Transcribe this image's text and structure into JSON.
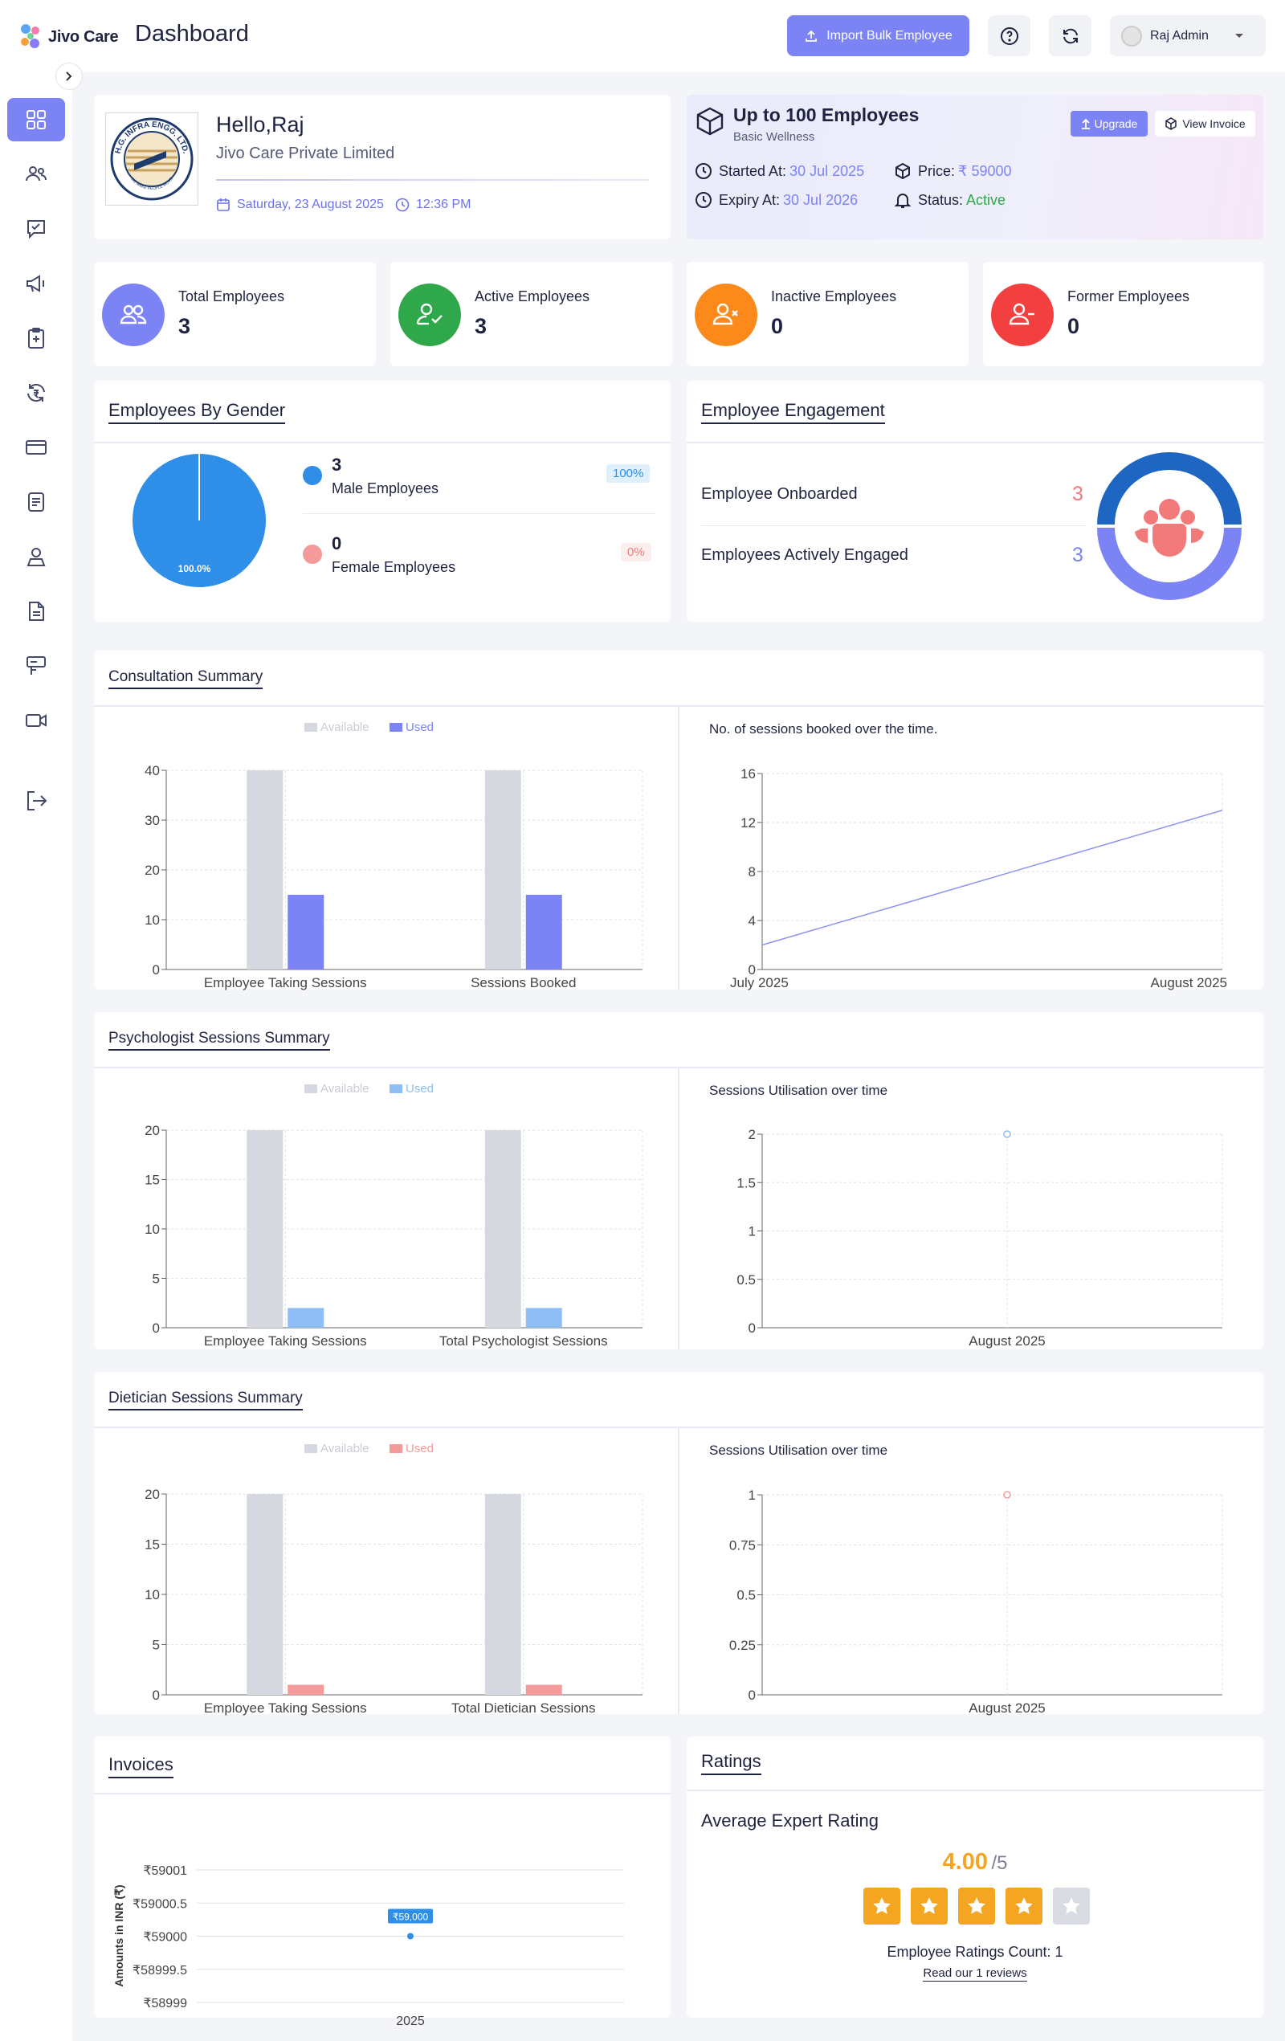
{
  "header": {
    "app_name": "Jivo Care",
    "title": "Dashboard",
    "import_label": "Import Bulk Employee",
    "user_name": "Raj Admin"
  },
  "company": {
    "greeting": "Hello,Raj",
    "name": "Jivo Care Private Limited",
    "date": "Saturday, 23 August 2025",
    "time": "12:36 PM",
    "logo_text": "H.G. INFRA ENGG. LTD.",
    "logo_motto": "WE MAKE PEOPLE MOVE"
  },
  "plan": {
    "title": "Up to 100 Employees",
    "subtitle": "Basic Wellness",
    "upgrade_label": "Upgrade",
    "invoice_label": "View Invoice",
    "started_label": "Started At:",
    "started_value": "30 Jul 2025",
    "expiry_label": "Expiry At:",
    "expiry_value": "30 Jul 2026",
    "price_label": "Price:",
    "price_value": "₹ 59000",
    "status_label": "Status:",
    "status_value": "Active"
  },
  "stats": [
    {
      "label": "Total Employees",
      "value": "3",
      "color": "#7c83f5"
    },
    {
      "label": "Active Employees",
      "value": "3",
      "color": "#2ea84a"
    },
    {
      "label": "Inactive Employees",
      "value": "0",
      "color": "#fb8a1b"
    },
    {
      "label": "Former Employees",
      "value": "0",
      "color": "#f23f3f"
    }
  ],
  "gender": {
    "title": "Employees By Gender",
    "pie_label": "100.0%",
    "male_count": "3",
    "male_label": "Male Employees",
    "male_pct": "100%",
    "female_count": "0",
    "female_label": "Female Employees",
    "female_pct": "0%"
  },
  "engagement": {
    "title": "Employee Engagement",
    "onboarded_label": "Employee Onboarded",
    "onboarded_value": "3",
    "engaged_label": "Employees Actively Engaged",
    "engaged_value": "3"
  },
  "consultation": {
    "title": "Consultation Summary",
    "line_title": "No. of sessions booked over the time."
  },
  "psychologist": {
    "title": "Psychologist Sessions Summary",
    "line_title": "Sessions Utilisation over time"
  },
  "dietician": {
    "title": "Dietician Sessions Summary",
    "line_title": "Sessions Utilisation over time"
  },
  "invoices": {
    "title": "Invoices"
  },
  "ratings": {
    "title": "Ratings",
    "avg_label": "Average Expert Rating",
    "avg_value": "4.00",
    "avg_max": "/5",
    "stars_filled": 4,
    "stars_total": 5,
    "count_label": "Employee Ratings Count: 1",
    "reviews_link": "Read our 1 reviews"
  },
  "chart_data": [
    {
      "type": "bar",
      "title": "",
      "categories": [
        "Employee Taking Sessions",
        "Sessions Booked"
      ],
      "series": [
        {
          "name": "Available",
          "values": [
            40,
            40
          ],
          "color": "#d6d8e0"
        },
        {
          "name": "Used",
          "values": [
            15,
            15
          ],
          "color": "#7c83f5"
        }
      ],
      "ylim": [
        0,
        40
      ],
      "yticks": [
        0,
        10,
        20,
        30,
        40
      ],
      "legend": "top"
    },
    {
      "type": "line",
      "title": "No. of sessions booked over the time.",
      "x": [
        "July 2025",
        "August 2025"
      ],
      "series": [
        {
          "values": [
            2,
            13
          ],
          "color": "#8e93f0"
        }
      ],
      "ylim": [
        0,
        16
      ],
      "yticks": [
        0,
        4,
        8,
        12,
        16
      ]
    },
    {
      "type": "bar",
      "title": "",
      "categories": [
        "Employee Taking Sessions",
        "Total Psychologist Sessions"
      ],
      "series": [
        {
          "name": "Available",
          "values": [
            20,
            20
          ],
          "color": "#d6d8e0"
        },
        {
          "name": "Used",
          "values": [
            2,
            2
          ],
          "color": "#8fbdf5"
        }
      ],
      "ylim": [
        0,
        20
      ],
      "yticks": [
        0,
        5,
        10,
        15,
        20
      ],
      "legend": "top"
    },
    {
      "type": "line",
      "title": "Sessions Utilisation over time",
      "x": [
        "August 2025"
      ],
      "series": [
        {
          "values": [
            2
          ],
          "color": "#8fbdf5"
        }
      ],
      "ylim": [
        0,
        2
      ],
      "yticks": [
        0,
        0.5,
        1,
        1.5,
        2
      ]
    },
    {
      "type": "bar",
      "title": "",
      "categories": [
        "Employee Taking Sessions",
        "Total Dietician Sessions"
      ],
      "series": [
        {
          "name": "Available",
          "values": [
            20,
            20
          ],
          "color": "#d6d8e0"
        },
        {
          "name": "Used",
          "values": [
            1,
            1
          ],
          "color": "#f59a9a"
        }
      ],
      "ylim": [
        0,
        20
      ],
      "yticks": [
        0,
        5,
        10,
        15,
        20
      ],
      "legend": "top"
    },
    {
      "type": "line",
      "title": "Sessions Utilisation over time",
      "x": [
        "August 2025"
      ],
      "series": [
        {
          "values": [
            1
          ],
          "color": "#f59a9a"
        }
      ],
      "ylim": [
        0,
        1
      ],
      "yticks": [
        0,
        0.25,
        0.5,
        0.75,
        1
      ]
    },
    {
      "type": "scatter",
      "title": "",
      "ylabel": "Amounts in INR (₹)",
      "x": [
        "2025"
      ],
      "series": [
        {
          "values": [
            59000
          ],
          "labels": [
            "₹59,000"
          ],
          "color": "#2f8fe8"
        }
      ],
      "ylim": [
        58999,
        59001
      ],
      "yticks": [
        "₹58999",
        "₹58999.5",
        "₹59000",
        "₹59000.5",
        "₹59001"
      ]
    }
  ]
}
